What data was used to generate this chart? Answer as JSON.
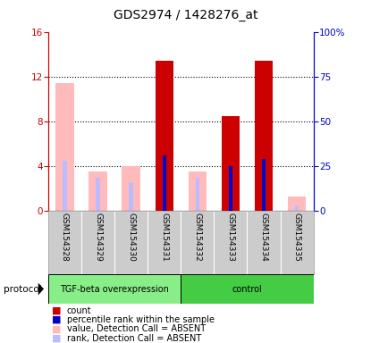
{
  "title": "GDS2974 / 1428276_at",
  "samples": [
    "GSM154328",
    "GSM154329",
    "GSM154330",
    "GSM154331",
    "GSM154332",
    "GSM154333",
    "GSM154334",
    "GSM154335"
  ],
  "absent_flags": [
    true,
    true,
    true,
    false,
    true,
    false,
    false,
    true
  ],
  "value_bars": [
    11.5,
    3.5,
    4.0,
    13.5,
    3.5,
    8.5,
    13.5,
    1.3
  ],
  "rank_bars": [
    4.5,
    3.0,
    2.5,
    5.0,
    3.0,
    4.0,
    4.7,
    0.5
  ],
  "color_present_value": "#cc0000",
  "color_absent_value": "#ffbbbb",
  "color_present_rank": "#0000cc",
  "color_absent_rank": "#bbbbff",
  "ylim_left": [
    0,
    16
  ],
  "ylim_right": [
    0,
    100
  ],
  "yticks_left": [
    0,
    4,
    8,
    12,
    16
  ],
  "yticks_right": [
    0,
    25,
    50,
    75,
    100
  ],
  "yticklabels_right": [
    "0",
    "25",
    "50",
    "75",
    "100%"
  ],
  "left_axis_color": "#cc0000",
  "right_axis_color": "#0000cc",
  "tgf_color": "#88ee88",
  "ctrl_color": "#44cc44",
  "gray_bg": "#cccccc"
}
